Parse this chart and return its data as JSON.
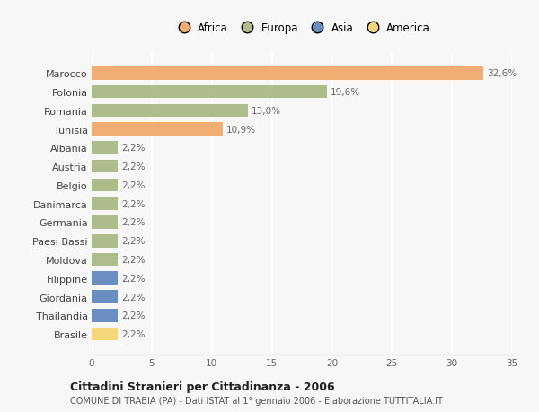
{
  "countries": [
    "Marocco",
    "Polonia",
    "Romania",
    "Tunisia",
    "Albania",
    "Austria",
    "Belgio",
    "Danimarca",
    "Germania",
    "Paesi Bassi",
    "Moldova",
    "Filippine",
    "Giordania",
    "Thailandia",
    "Brasile"
  ],
  "values": [
    32.6,
    19.6,
    13.0,
    10.9,
    2.2,
    2.2,
    2.2,
    2.2,
    2.2,
    2.2,
    2.2,
    2.2,
    2.2,
    2.2,
    2.2
  ],
  "labels": [
    "32,6%",
    "19,6%",
    "13,0%",
    "10,9%",
    "2,2%",
    "2,2%",
    "2,2%",
    "2,2%",
    "2,2%",
    "2,2%",
    "2,2%",
    "2,2%",
    "2,2%",
    "2,2%",
    "2,2%"
  ],
  "continents": [
    "Africa",
    "Europa",
    "Europa",
    "Africa",
    "Europa",
    "Europa",
    "Europa",
    "Europa",
    "Europa",
    "Europa",
    "Europa",
    "Asia",
    "Asia",
    "Asia",
    "America"
  ],
  "colors": {
    "Africa": "#F2AE72",
    "Europa": "#AEBB8B",
    "Asia": "#6B8EC2",
    "America": "#F5D77A"
  },
  "legend_order": [
    "Africa",
    "Europa",
    "Asia",
    "America"
  ],
  "title": "Cittadini Stranieri per Cittadinanza - 2006",
  "subtitle": "COMUNE DI TRABIA (PA) - Dati ISTAT al 1° gennaio 2006 - Elaborazione TUTTITALIA.IT",
  "xlim": [
    0,
    35
  ],
  "xticks": [
    0,
    5,
    10,
    15,
    20,
    25,
    30,
    35
  ],
  "background_color": "#F7F7F7",
  "grid_color": "#FFFFFF"
}
